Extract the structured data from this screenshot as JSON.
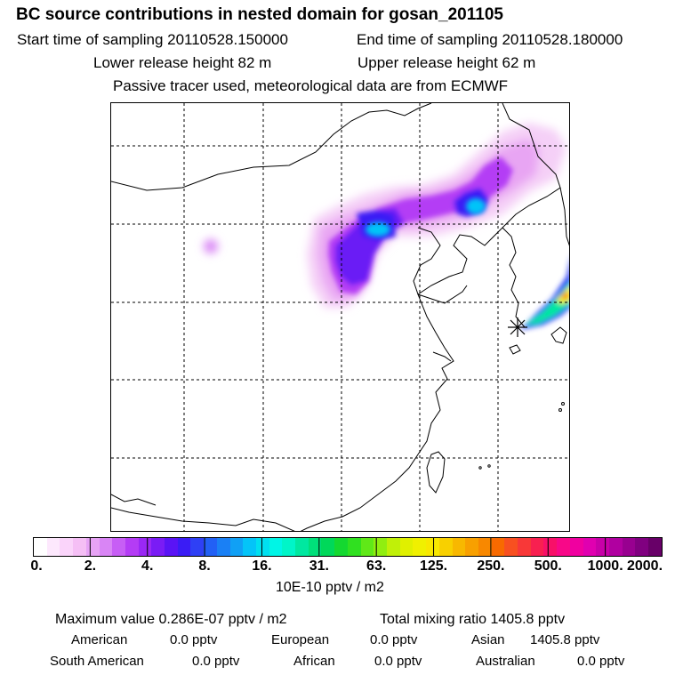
{
  "header": {
    "title": "BC  source contributions in nested domain for gosan_201105",
    "start_label": "Start time of sampling 20110528.150000",
    "end_label": "End time of sampling 20110528.180000",
    "lower_label": "Lower release height   82 m",
    "upper_label": "Upper release height   62 m",
    "tracer_label": "Passive tracer used, meteorological data are from ECMWF"
  },
  "map": {
    "receptor": "gosan",
    "receptor_marker": "star",
    "grid": "dashed",
    "background": "#ffffff",
    "coastline_color": "#000000"
  },
  "colorbar": {
    "tick_labels": [
      "0.",
      "2.",
      "4.",
      "8.",
      "16.",
      "31.",
      "63.",
      "125.",
      "250.",
      "500.",
      "1000.",
      "2000."
    ],
    "unit_label": "10E-10 pptv / m2",
    "colors": [
      "#ffffff",
      "#fde8fd",
      "#fad4fa",
      "#f5bff5",
      "#e7a3f5",
      "#d985f5",
      "#c75ef5",
      "#b43cf5",
      "#9a28f5",
      "#7a1cf5",
      "#5a14f5",
      "#3a1cf5",
      "#2f40f5",
      "#2260f5",
      "#1a80f5",
      "#10a0f5",
      "#04c4f8",
      "#00e0f0",
      "#00f5e6",
      "#00f5c8",
      "#00e8a0",
      "#00e07a",
      "#00d85a",
      "#14d830",
      "#30e020",
      "#60e818",
      "#90ee10",
      "#c0f008",
      "#e0f000",
      "#f0f000",
      "#f8e800",
      "#f8d000",
      "#f8b800",
      "#f8a000",
      "#f88800",
      "#f86a00",
      "#f85020",
      "#f83838",
      "#f82050",
      "#f81068",
      "#f80888",
      "#f000a0",
      "#e000b0",
      "#c800a8",
      "#b000a0",
      "#980090",
      "#800080",
      "#680068"
    ]
  },
  "stats": {
    "max_label": "Maximum value  0.286E-07 pptv / m2",
    "total_label": "Total mixing ratio     1405.8 pptv",
    "american_label": "American",
    "american_value": "0.0 pptv",
    "european_label": "European",
    "european_value": "0.0 pptv",
    "asian_label": "Asian",
    "asian_value": "1405.8 pptv",
    "south_american_label": "South American",
    "south_american_value": "0.0 pptv",
    "african_label": "African",
    "african_value": "0.0 pptv",
    "australian_label": "Australian",
    "australian_value": "0.0 pptv"
  }
}
